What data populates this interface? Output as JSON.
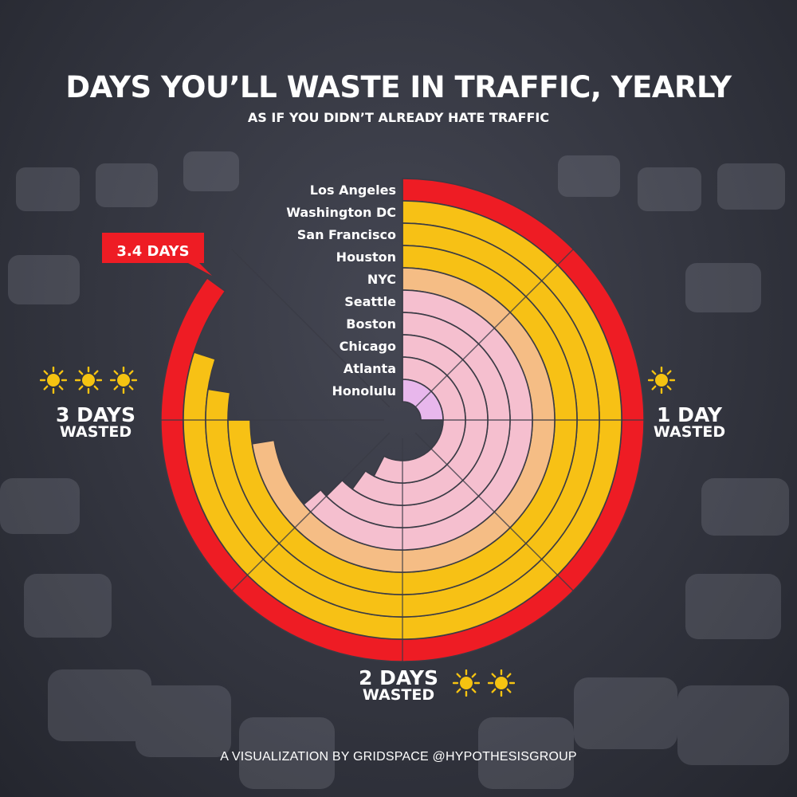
{
  "header": {
    "title": "DAYS YOU’LL WASTE IN TRAFFIC, YEARLY",
    "subtitle": "AS IF YOU DIDN’T ALREADY HATE TRAFFIC"
  },
  "annotations": {
    "max_callout": "3.4 DAYS",
    "one_day": {
      "big": "1 DAY",
      "small": "WASTED"
    },
    "two_days": {
      "big": "2 DAYS",
      "small": "WASTED"
    },
    "three_days": {
      "big": "3 DAYS",
      "small": "WASTED"
    }
  },
  "footer": {
    "credit": "A VISUALIZATION BY GRIDSPACE @HYPOTHESISGROUP"
  },
  "colors": {
    "red": "#ee1c24",
    "gold": "#f7c115",
    "peach": "#f5bd85",
    "pink": "#f5bfcf",
    "lilac": "#e8b7ec",
    "ring_outline": "#3a3b45",
    "sun": "#f5c311"
  },
  "icons": [
    "sun-icon"
  ],
  "chart_data": {
    "type": "radial-bar",
    "title": "DAYS YOU’LL WASTE IN TRAFFIC, YEARLY",
    "unit": "days",
    "scale_max_days": 4,
    "categories": [
      "Los Angeles",
      "Washington DC",
      "San Francisco",
      "Houston",
      "NYC",
      "Seattle",
      "Boston",
      "Chicago",
      "Atlanta",
      "Honolulu"
    ],
    "values": [
      3.4,
      3.2,
      3.1,
      3.0,
      2.9,
      2.55,
      2.5,
      2.4,
      2.3,
      1.0
    ],
    "reference_lines": [
      1,
      2,
      3
    ],
    "callout": {
      "category": "Los Angeles",
      "label": "3.4 DAYS"
    }
  }
}
